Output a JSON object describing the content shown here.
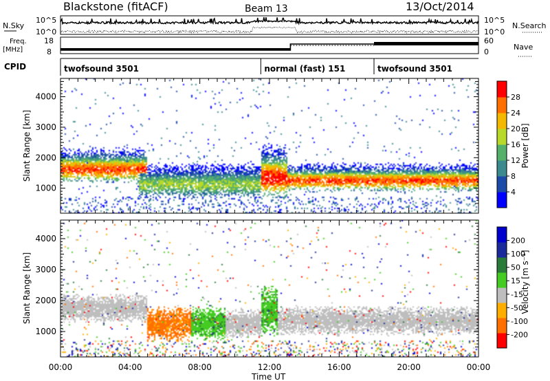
{
  "header": {
    "station": "Blackstone (fitACF)",
    "beam": "Beam 13",
    "date": "13/Oct/2014"
  },
  "summary_panel": {
    "nsky_label": "N.Sky",
    "nsearch_label": "N.Search",
    "freq_label_line1": "Freq.",
    "freq_label_line2": "[MHz]",
    "nave_label": "Nave",
    "cpid_label": "CPID",
    "log_ticks": [
      "10^5",
      "10^0"
    ],
    "freq_ticks": [
      "18",
      "8"
    ],
    "nave_ticks": [
      "60",
      "0"
    ],
    "cpid_segments": [
      {
        "label": "twofsound 3501",
        "start_hour": 0,
        "end_hour": 11.5
      },
      {
        "label": "normal (fast) 151",
        "start_hour": 11.5,
        "end_hour": 18
      },
      {
        "label": "twofsound 3501",
        "start_hour": 18,
        "end_hour": 24
      }
    ]
  },
  "axes": {
    "xlabel": "Time UT",
    "x_ticks": [
      "00:00",
      "04:00",
      "08:00",
      "12:00",
      "16:00",
      "20:00",
      "00:00"
    ],
    "ylabel": "Slant Range [km]",
    "y_ticks": [
      "4000",
      "3000",
      "2000",
      "1000"
    ]
  },
  "colorbars": {
    "power": {
      "label": "Power [dB]",
      "ticks": [
        "28",
        "24",
        "20",
        "16",
        "12",
        "8",
        "4"
      ],
      "colors": [
        "#0000ff",
        "#1c4aa8",
        "#3a8a8e",
        "#55b06a",
        "#b8d82a",
        "#f5b800",
        "#ff7000",
        "#ff0000"
      ]
    },
    "velocity": {
      "label": "Velocity [m s⁻¹]",
      "ticks": [
        "200",
        "100",
        "50",
        "15",
        "-15",
        "-50",
        "-100",
        "-200"
      ],
      "colors": [
        "#ff0000",
        "#ff7000",
        "#ffae00",
        "#bebebe",
        "#44cc22",
        "#2a7a3a",
        "#1a2a9a",
        "#0000cc"
      ]
    }
  },
  "chart_data": [
    {
      "type": "heatmap",
      "title": "Power [dB]",
      "xlabel": "Time UT",
      "ylabel": "Slant Range [km]",
      "xlim": [
        0,
        24
      ],
      "ylim": [
        180,
        4600
      ],
      "zlim": [
        0,
        30
      ],
      "features": [
        {
          "t0": 0,
          "t1": 5,
          "r0": 1200,
          "r1": 2300,
          "peak": 26
        },
        {
          "t0": 4.5,
          "t1": 11.5,
          "r0": 700,
          "r1": 1800,
          "peak": 16
        },
        {
          "t0": 11.5,
          "t1": 13,
          "r0": 700,
          "r1": 2400,
          "peak": 28
        },
        {
          "t0": 13,
          "t1": 24,
          "r0": 900,
          "r1": 1800,
          "peak": 26
        }
      ]
    },
    {
      "type": "heatmap",
      "title": "Velocity [m s⁻¹]",
      "xlabel": "Time UT",
      "ylabel": "Slant Range [km]",
      "xlim": [
        0,
        24
      ],
      "ylim": [
        180,
        4600
      ],
      "zlim": [
        -200,
        200
      ],
      "features": [
        {
          "t0": 0,
          "t1": 5,
          "r0": 1300,
          "r1": 2200,
          "velocity": 0
        },
        {
          "t0": 5,
          "t1": 7.5,
          "r0": 700,
          "r1": 1800,
          "velocity": -60
        },
        {
          "t0": 7.5,
          "t1": 9.5,
          "r0": 700,
          "r1": 1800,
          "velocity": 40
        },
        {
          "t0": 9.5,
          "t1": 11.5,
          "r0": 800,
          "r1": 1700,
          "velocity": 0
        },
        {
          "t0": 11.5,
          "t1": 12.5,
          "r0": 900,
          "r1": 2500,
          "velocity": 40
        },
        {
          "t0": 12.5,
          "t1": 24,
          "r0": 900,
          "r1": 1800,
          "velocity": 0
        }
      ]
    }
  ]
}
